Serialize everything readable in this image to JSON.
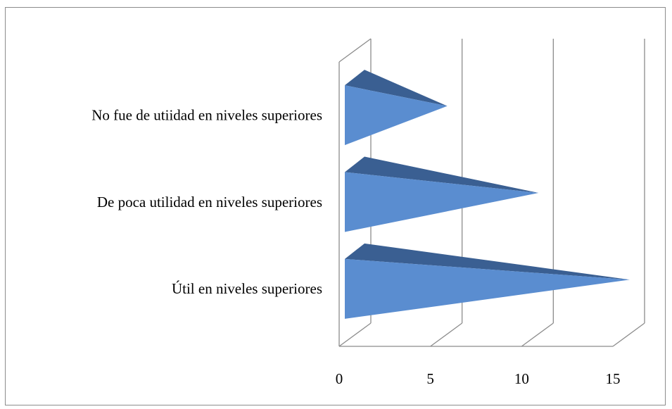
{
  "chart_data": {
    "type": "bar",
    "style": "3d-cone",
    "orientation": "horizontal",
    "categories": [
      "Útil en niveles superiores",
      "De poca utilidad en niveles superiores",
      "No fue de utiidad en niveles superiores"
    ],
    "values": [
      15,
      10,
      5
    ],
    "xlim": [
      0,
      15
    ],
    "xticks": [
      0,
      5,
      10,
      15
    ],
    "grid": true,
    "legend": "none",
    "colors": {
      "bar_front": "#5a8dd0",
      "bar_top": "#3a5f92",
      "grid": "#8c8c8c",
      "frame": "#8c8c8c"
    }
  }
}
